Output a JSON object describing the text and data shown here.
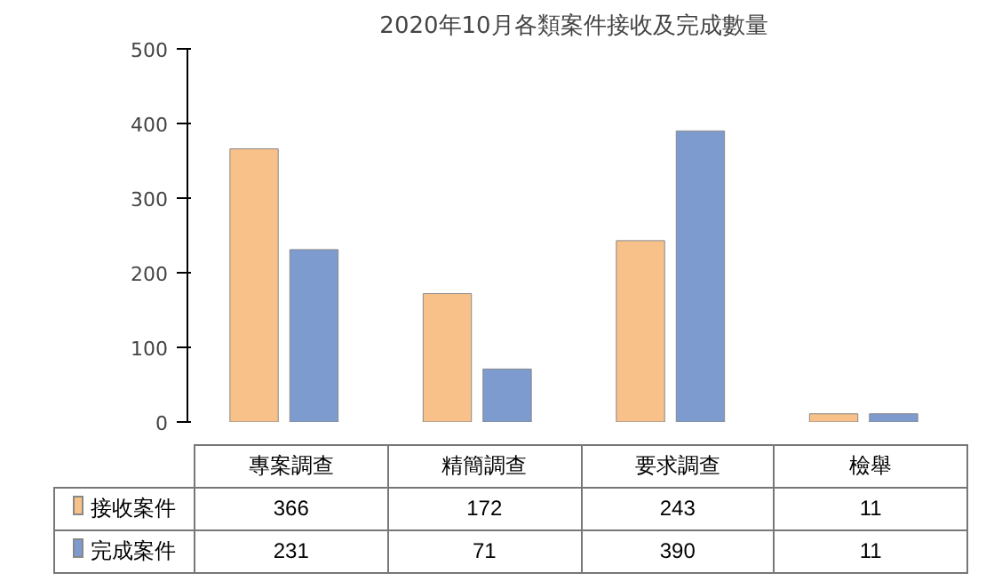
{
  "chart_data": {
    "type": "bar",
    "title": "2020年10月各類案件接收及完成數量",
    "categories": [
      "專案調查",
      "精簡調查",
      "要求調查",
      "檢舉"
    ],
    "series": [
      {
        "name": "接收案件",
        "color": "#f9c18a",
        "values": [
          366,
          172,
          243,
          11
        ]
      },
      {
        "name": "完成案件",
        "color": "#7e9bd0",
        "values": [
          231,
          71,
          390,
          11
        ]
      }
    ],
    "ylim": [
      0,
      500
    ],
    "yticks": [
      0,
      100,
      200,
      300,
      400,
      500
    ],
    "grid": false,
    "legend": "bottom",
    "data_labels": true
  }
}
